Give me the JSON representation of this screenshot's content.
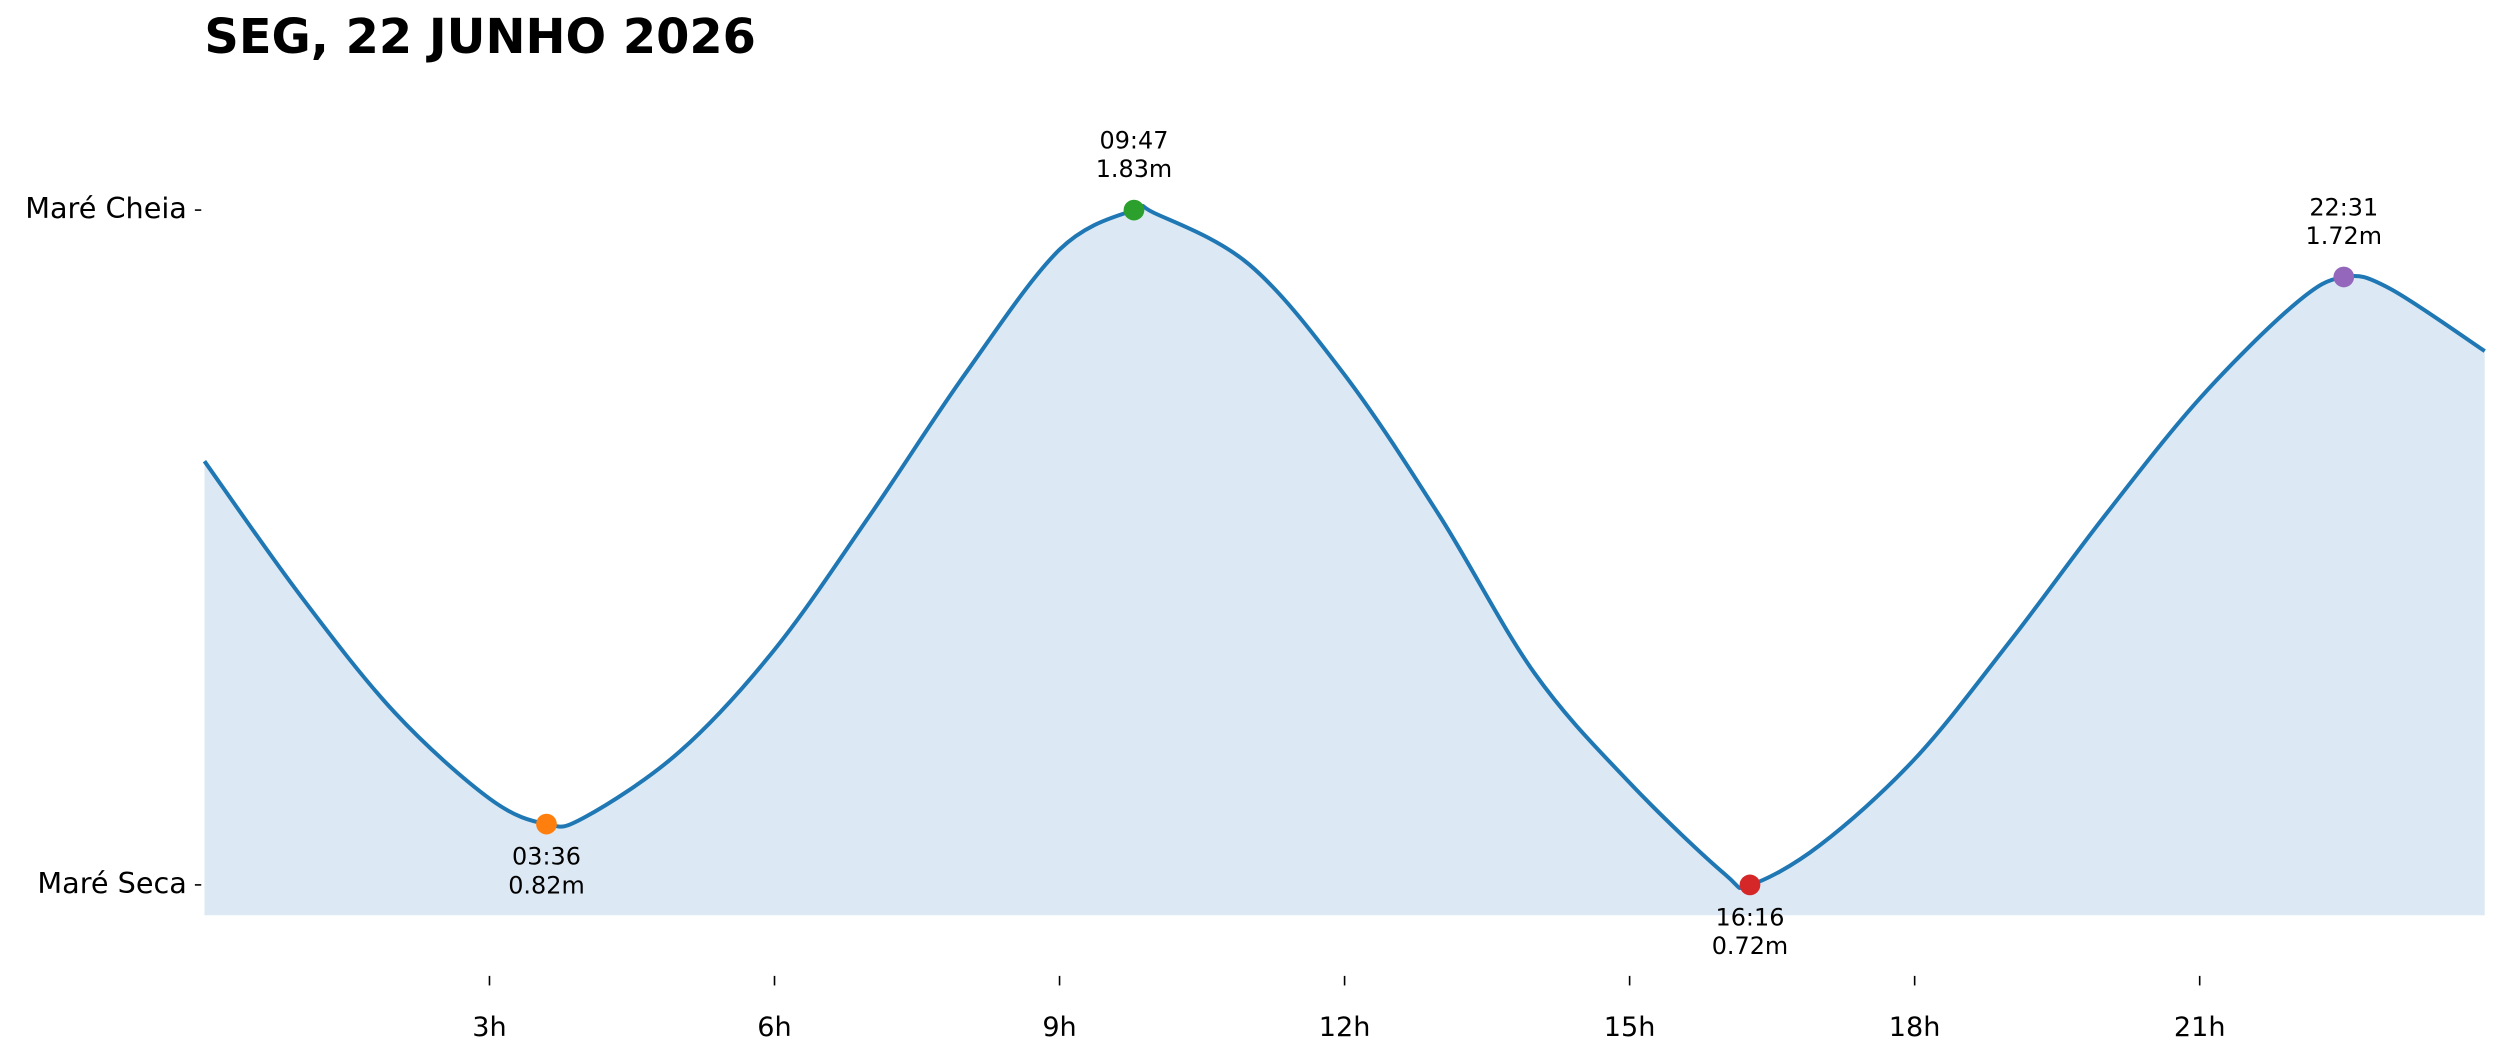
{
  "chart_data": {
    "type": "area",
    "title": "SEG, 22 JUNHO 2026",
    "x": [
      0,
      1,
      2,
      3,
      3.6,
      4,
      5,
      6,
      7,
      8,
      9,
      9.7833,
      10,
      11,
      12,
      13,
      14,
      15,
      16,
      16.2667,
      17,
      18,
      19,
      20,
      21,
      22,
      22.5167,
      23,
      24
    ],
    "series": [
      {
        "color": "#1f77b4",
        "fill": "#dce9f4",
        "values": [
          1.417,
          1.198,
          1.004,
          0.862,
          0.82,
          0.831,
          0.939,
          1.107,
          1.327,
          1.559,
          1.765,
          1.83,
          1.825,
          1.74,
          1.559,
          1.327,
          1.068,
          0.888,
          0.738,
          0.72,
          0.785,
          0.927,
          1.12,
          1.327,
          1.52,
          1.675,
          1.72,
          1.701,
          1.598
        ]
      }
    ],
    "extrema": [
      {
        "x": 3.6,
        "time_label": "03:36",
        "value": 0.82,
        "value_label": "0.82m",
        "color": "#ff7f0e",
        "position": "below"
      },
      {
        "x": 9.7833,
        "time_label": "09:47",
        "value": 1.83,
        "value_label": "1.83m",
        "color": "#2ca02c",
        "position": "above"
      },
      {
        "x": 16.2667,
        "time_label": "16:16",
        "value": 0.72,
        "value_label": "0.72m",
        "color": "#d62728",
        "position": "below"
      },
      {
        "x": 22.5167,
        "time_label": "22:31",
        "value": 1.72,
        "value_label": "1.72m",
        "color": "#9467bd",
        "position": "above"
      }
    ],
    "xlim": [
      0,
      24
    ],
    "ylim": [
      0.67,
      1.95
    ],
    "xticks": [
      {
        "value": 3,
        "label": "3h"
      },
      {
        "value": 6,
        "label": "6h"
      },
      {
        "value": 9,
        "label": "9h"
      },
      {
        "value": 12,
        "label": "12h"
      },
      {
        "value": 15,
        "label": "15h"
      },
      {
        "value": 18,
        "label": "18h"
      },
      {
        "value": 21,
        "label": "21h"
      }
    ],
    "yticks": [
      {
        "value": 1.83,
        "label": "Maré Cheia"
      },
      {
        "value": 0.72,
        "label": "Maré Seca"
      }
    ]
  }
}
